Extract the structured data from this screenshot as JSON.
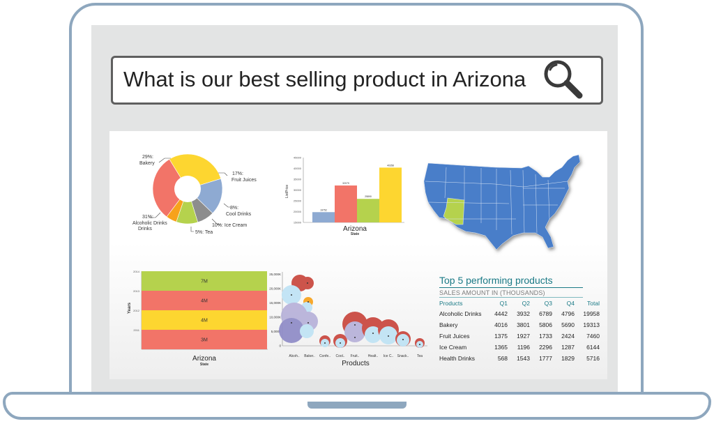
{
  "search": {
    "query": "What is our best selling product in Arizona"
  },
  "icons": {
    "search": "magnifier-icon"
  },
  "colors": {
    "accent": "#1a7a86",
    "frame": "#8ea7be",
    "map_states": "#4a7ec9",
    "map_highlight": "#b5d24d"
  },
  "donut": {
    "slices": [
      {
        "label_pct": "29%:",
        "label_name": "Bakery",
        "value": 29,
        "color": "#fdd630"
      },
      {
        "label_pct": "17%:",
        "label_name": "Fruit Juices",
        "value": 17,
        "color": "#8eaad2"
      },
      {
        "label_pct": "8%:",
        "label_name": "Cool Drinks",
        "value": 8,
        "color": "#8d8d8d"
      },
      {
        "label_pct": "",
        "label_name": "10%: Ice Cream",
        "value": 10,
        "color": "#b5d24d"
      },
      {
        "label_pct": "",
        "label_name": "5%: Tea",
        "value": 5,
        "color": "#f7a21b"
      },
      {
        "label_pct": "31%:",
        "label_name": "Alcoholic Drinks",
        "value": 31,
        "color": "#f27468"
      }
    ]
  },
  "bar_chart": {
    "type": "bar",
    "ylabel": "ListPrice",
    "xlabel": "State",
    "category_label": "Arizona",
    "yticks": [
      "45000",
      "40000",
      "35000",
      "30000",
      "25000",
      "20000",
      "15000"
    ],
    "ylim": [
      15000,
      45000
    ],
    "values": [
      {
        "value": 19752,
        "label": "19752",
        "color": "#8eaad2"
      },
      {
        "value": 32079,
        "label": "32079",
        "color": "#f27468"
      },
      {
        "value": 25890,
        "label": "25890",
        "color": "#b5d24d"
      },
      {
        "value": 40358,
        "label": "40358",
        "color": "#fdd630"
      }
    ]
  },
  "map": {
    "highlight_state": "Arizona"
  },
  "stacked_bar": {
    "ylabel": "Years",
    "xlabel": "State",
    "category_label": "Arizona",
    "yticks": [
      "2014",
      "2013",
      "2012",
      "2011"
    ],
    "segments": [
      {
        "year": "2014",
        "label": "7M",
        "value": 7,
        "color": "#b5d24d"
      },
      {
        "year": "2013",
        "label": "4M",
        "value": 4,
        "color": "#f27468"
      },
      {
        "year": "2012",
        "label": "4M",
        "value": 4,
        "color": "#fdd630"
      },
      {
        "year": "2011",
        "label": "3M",
        "value": 3,
        "color": "#f27468"
      }
    ]
  },
  "bubble_chart": {
    "xlabel": "Products",
    "yticks": [
      "25,000K",
      "20,000K",
      "15,000K",
      "10,000K",
      "5,000K",
      "0"
    ],
    "categories": [
      "Alcoh..",
      "Baker..",
      "Confe..",
      "Cool..",
      "Fruit..",
      "Healt..",
      "Ice C..",
      "Snack..",
      "Tea"
    ]
  },
  "top_table": {
    "title": "Top 5 performing products",
    "subtitle": "SALES AMOUNT IN (THOUSANDS)",
    "headers": [
      "Products",
      "Q1",
      "Q2",
      "Q3",
      "Q4",
      "Total"
    ],
    "rows": [
      [
        "Alcoholic Drinks",
        "4442",
        "3932",
        "6789",
        "4796",
        "19958"
      ],
      [
        "Bakery",
        "4016",
        "3801",
        "5806",
        "5690",
        "19313"
      ],
      [
        "Fruit Juices",
        "1375",
        "1927",
        "1733",
        "2424",
        "7460"
      ],
      [
        "Ice Cream",
        "1365",
        "1196",
        "2296",
        "1287",
        "6144"
      ],
      [
        "Health Drinks",
        "568",
        "1543",
        "1777",
        "1829",
        "5716"
      ]
    ]
  }
}
